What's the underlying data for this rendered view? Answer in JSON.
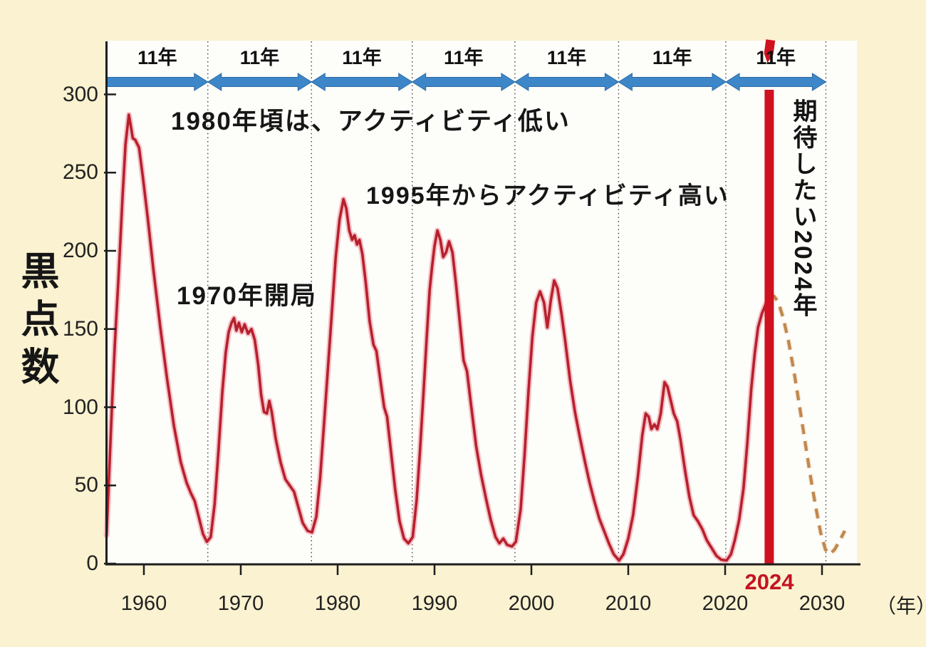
{
  "y_axis": {
    "title": "黒点数",
    "ticks": [
      300,
      250,
      200,
      150,
      100,
      50,
      0
    ]
  },
  "x_axis": {
    "ticks": [
      1960,
      1970,
      1980,
      1990,
      2000,
      2010,
      2020,
      2030
    ],
    "unit_label": "（年）"
  },
  "cycle_arrows": {
    "label": "11年",
    "start_year": 1956.18,
    "boundary_years": [
      1966.6,
      1977.3,
      1987.7,
      1998.3,
      2009.0,
      2020.07,
      2030.4
    ]
  },
  "annotations": {
    "low_activity": "1980年頃は、アクティビティ低い",
    "high_activity": "1995年からアクティビティ高い",
    "station_opened": "1970年開局",
    "expectation_vertical": "期待したい2024年",
    "marker_year_label": "2024"
  },
  "colors": {
    "background": "#faf2d0",
    "plot_bg": "#fdfdfa",
    "axis": "#1e1e1e",
    "curve": "#b7202d",
    "curve_halo": "#f3b6bc",
    "forecast": "#c1874e",
    "forecast_halo": "#efdbc1",
    "arrow_blue": "#3d87c9",
    "arrow_blue_edge": "#2b6aa5",
    "marker_red": "#cf1120",
    "red_label": "#c31322",
    "dotted_line": "#4a4a4a"
  },
  "chart_data": {
    "type": "line",
    "title": "太陽黒点数の推移（11年周期）",
    "xlabel": "（年）",
    "ylabel": "黒点数",
    "ylim": [
      0,
      300
    ],
    "xlim": [
      1956,
      2033
    ],
    "grid": "vertical dotted lines at 11-year cycle boundaries",
    "legend_position": "none",
    "marker_2024": {
      "year": 2024.55,
      "color": "#cf1120",
      "label": "2024"
    },
    "series": [
      {
        "name": "observed sunspot number",
        "style": "solid",
        "color": "#b7202d",
        "points": [
          [
            1956.15,
            18
          ],
          [
            1956.4,
            55
          ],
          [
            1956.7,
            100
          ],
          [
            1957.0,
            140
          ],
          [
            1957.4,
            185
          ],
          [
            1957.8,
            235
          ],
          [
            1958.1,
            268
          ],
          [
            1958.45,
            287
          ],
          [
            1958.7,
            278
          ],
          [
            1958.85,
            272
          ],
          [
            1959.1,
            271
          ],
          [
            1959.5,
            266
          ],
          [
            1959.9,
            247
          ],
          [
            1960.4,
            221
          ],
          [
            1961.0,
            187
          ],
          [
            1961.7,
            151
          ],
          [
            1962.4,
            118
          ],
          [
            1963.1,
            88
          ],
          [
            1963.8,
            65
          ],
          [
            1964.4,
            52
          ],
          [
            1964.85,
            45
          ],
          [
            1965.25,
            40
          ],
          [
            1965.7,
            29
          ],
          [
            1966.1,
            19
          ],
          [
            1966.5,
            14
          ],
          [
            1966.9,
            17
          ],
          [
            1967.3,
            38
          ],
          [
            1967.7,
            72
          ],
          [
            1968.1,
            110
          ],
          [
            1968.45,
            135
          ],
          [
            1968.75,
            148
          ],
          [
            1969.05,
            154
          ],
          [
            1969.3,
            157
          ],
          [
            1969.55,
            149
          ],
          [
            1969.8,
            154
          ],
          [
            1970.1,
            148
          ],
          [
            1970.4,
            153
          ],
          [
            1970.75,
            147
          ],
          [
            1971.1,
            150
          ],
          [
            1971.45,
            143
          ],
          [
            1971.8,
            127
          ],
          [
            1972.1,
            108
          ],
          [
            1972.4,
            97
          ],
          [
            1972.7,
            96
          ],
          [
            1972.95,
            104
          ],
          [
            1973.2,
            97
          ],
          [
            1973.6,
            80
          ],
          [
            1974.1,
            65
          ],
          [
            1974.6,
            54
          ],
          [
            1975.05,
            50
          ],
          [
            1975.5,
            46
          ],
          [
            1975.95,
            36
          ],
          [
            1976.4,
            26
          ],
          [
            1976.9,
            21
          ],
          [
            1977.35,
            20
          ],
          [
            1977.8,
            30
          ],
          [
            1978.2,
            55
          ],
          [
            1978.6,
            90
          ],
          [
            1979.0,
            125
          ],
          [
            1979.4,
            160
          ],
          [
            1979.8,
            196
          ],
          [
            1980.2,
            220
          ],
          [
            1980.6,
            233
          ],
          [
            1980.9,
            227
          ],
          [
            1981.2,
            213
          ],
          [
            1981.5,
            207
          ],
          [
            1981.75,
            210
          ],
          [
            1982.0,
            204
          ],
          [
            1982.25,
            207
          ],
          [
            1982.55,
            198
          ],
          [
            1982.9,
            180
          ],
          [
            1983.3,
            155
          ],
          [
            1983.7,
            140
          ],
          [
            1984.0,
            136
          ],
          [
            1984.4,
            118
          ],
          [
            1984.8,
            100
          ],
          [
            1985.1,
            94
          ],
          [
            1985.5,
            72
          ],
          [
            1985.95,
            47
          ],
          [
            1986.4,
            27
          ],
          [
            1986.85,
            16
          ],
          [
            1987.3,
            13
          ],
          [
            1987.75,
            17
          ],
          [
            1988.15,
            40
          ],
          [
            1988.5,
            72
          ],
          [
            1988.85,
            108
          ],
          [
            1989.2,
            145
          ],
          [
            1989.5,
            175
          ],
          [
            1989.75,
            190
          ],
          [
            1990.0,
            203
          ],
          [
            1990.3,
            213
          ],
          [
            1990.6,
            207
          ],
          [
            1990.9,
            196
          ],
          [
            1991.2,
            199
          ],
          [
            1991.5,
            206
          ],
          [
            1991.85,
            199
          ],
          [
            1992.2,
            180
          ],
          [
            1992.6,
            155
          ],
          [
            1993.0,
            130
          ],
          [
            1993.35,
            123
          ],
          [
            1993.8,
            100
          ],
          [
            1994.3,
            75
          ],
          [
            1994.8,
            57
          ],
          [
            1995.3,
            42
          ],
          [
            1995.8,
            28
          ],
          [
            1996.3,
            17
          ],
          [
            1996.7,
            13
          ],
          [
            1997.1,
            16
          ],
          [
            1997.5,
            12
          ],
          [
            1998.0,
            11
          ],
          [
            1998.4,
            14
          ],
          [
            1998.9,
            35
          ],
          [
            1999.3,
            70
          ],
          [
            1999.7,
            110
          ],
          [
            2000.1,
            145
          ],
          [
            2000.5,
            167
          ],
          [
            2000.9,
            174
          ],
          [
            2001.3,
            167
          ],
          [
            2001.65,
            151
          ],
          [
            2002.0,
            168
          ],
          [
            2002.35,
            181
          ],
          [
            2002.7,
            176
          ],
          [
            2003.1,
            160
          ],
          [
            2003.5,
            142
          ],
          [
            2004.0,
            117
          ],
          [
            2004.5,
            97
          ],
          [
            2005.0,
            81
          ],
          [
            2005.5,
            66
          ],
          [
            2006.0,
            52
          ],
          [
            2006.5,
            40
          ],
          [
            2007.0,
            29
          ],
          [
            2007.5,
            21
          ],
          [
            2008.0,
            13
          ],
          [
            2008.5,
            6
          ],
          [
            2009.05,
            2
          ],
          [
            2009.5,
            6
          ],
          [
            2010.0,
            16
          ],
          [
            2010.5,
            31
          ],
          [
            2011.0,
            56
          ],
          [
            2011.45,
            82
          ],
          [
            2011.8,
            96
          ],
          [
            2012.1,
            94
          ],
          [
            2012.4,
            86
          ],
          [
            2012.7,
            89
          ],
          [
            2013.0,
            86
          ],
          [
            2013.35,
            96
          ],
          [
            2013.75,
            116
          ],
          [
            2014.05,
            113
          ],
          [
            2014.4,
            104
          ],
          [
            2014.7,
            96
          ],
          [
            2015.05,
            91
          ],
          [
            2015.4,
            79
          ],
          [
            2015.85,
            60
          ],
          [
            2016.3,
            43
          ],
          [
            2016.75,
            31
          ],
          [
            2017.2,
            27
          ],
          [
            2017.65,
            22
          ],
          [
            2018.1,
            15
          ],
          [
            2018.6,
            10
          ],
          [
            2019.1,
            5
          ],
          [
            2019.6,
            2.5
          ],
          [
            2020.15,
            2
          ],
          [
            2020.6,
            6
          ],
          [
            2021.0,
            15
          ],
          [
            2021.45,
            28
          ],
          [
            2021.9,
            48
          ],
          [
            2022.3,
            78
          ],
          [
            2022.7,
            112
          ],
          [
            2023.05,
            134
          ],
          [
            2023.4,
            151
          ],
          [
            2023.8,
            160
          ],
          [
            2024.2,
            166
          ],
          [
            2024.65,
            169
          ]
        ]
      },
      {
        "name": "predicted sunspot number",
        "style": "dashed",
        "color": "#c1874e",
        "points": [
          [
            2024.65,
            169
          ],
          [
            2025.05,
            171
          ],
          [
            2025.5,
            167
          ],
          [
            2026.0,
            157
          ],
          [
            2026.55,
            142
          ],
          [
            2027.1,
            123
          ],
          [
            2027.65,
            102
          ],
          [
            2028.2,
            80
          ],
          [
            2028.75,
            58
          ],
          [
            2029.3,
            38
          ],
          [
            2029.85,
            20
          ],
          [
            2030.35,
            9
          ],
          [
            2030.8,
            6
          ],
          [
            2031.3,
            9
          ],
          [
            2031.85,
            15
          ],
          [
            2032.35,
            21
          ]
        ]
      }
    ]
  }
}
